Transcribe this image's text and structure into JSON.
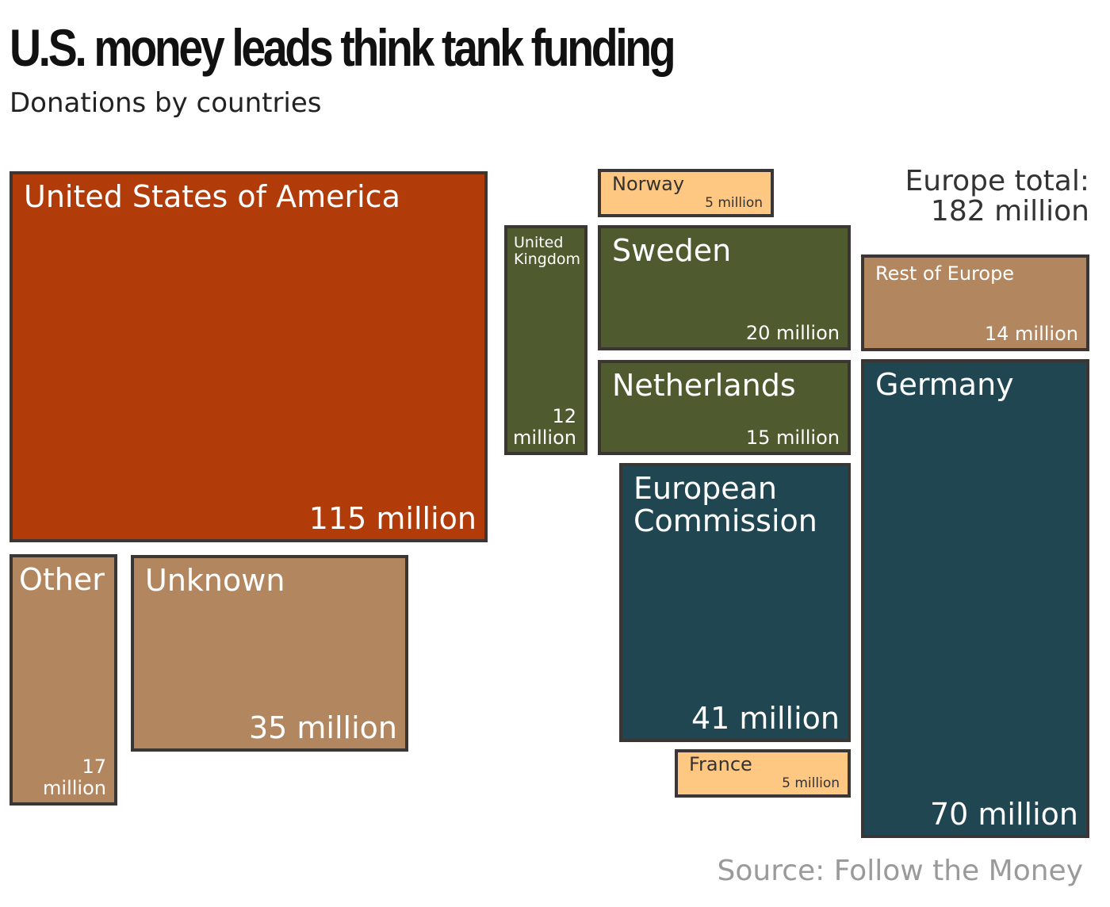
{
  "header": {
    "title": "U.S. money leads think tank funding",
    "subtitle": "Donations by countries"
  },
  "europe_total": {
    "label": "Europe total:",
    "value": "182 million"
  },
  "source": "Source: Follow the Money",
  "colors": {
    "usa": "#b23c09",
    "other_unknown": "#b28760",
    "small_light": "#ffc882",
    "green": "#4f5b2e",
    "teal": "#1f4651",
    "border": "#3b3633"
  },
  "chart_data": {
    "type": "treemap",
    "unit": "million",
    "items": [
      {
        "name": "United States of America",
        "value": 115,
        "value_label": "115 million",
        "color": "#b23c09"
      },
      {
        "name": "Other",
        "value": 17,
        "value_label": "17 million",
        "color": "#b28760"
      },
      {
        "name": "Unknown",
        "value": 35,
        "value_label": "35 million",
        "color": "#b28760"
      },
      {
        "name": "United Kingdom",
        "value": 12,
        "value_label": "12 million",
        "color": "#4f5b2e"
      },
      {
        "name": "Norway",
        "value": 5,
        "value_label": "5 million",
        "color": "#ffc882"
      },
      {
        "name": "Sweden",
        "value": 20,
        "value_label": "20 million",
        "color": "#4f5b2e"
      },
      {
        "name": "Netherlands",
        "value": 15,
        "value_label": "15 million",
        "color": "#4f5b2e"
      },
      {
        "name": "European Commission",
        "value": 41,
        "value_label": "41 million",
        "color": "#1f4651"
      },
      {
        "name": "France",
        "value": 5,
        "value_label": "5 million",
        "color": "#ffc882"
      },
      {
        "name": "Rest of Europe",
        "value": 14,
        "value_label": "14 million",
        "color": "#b28760"
      },
      {
        "name": "Germany",
        "value": 70,
        "value_label": "70 million",
        "color": "#1f4651"
      }
    ]
  }
}
